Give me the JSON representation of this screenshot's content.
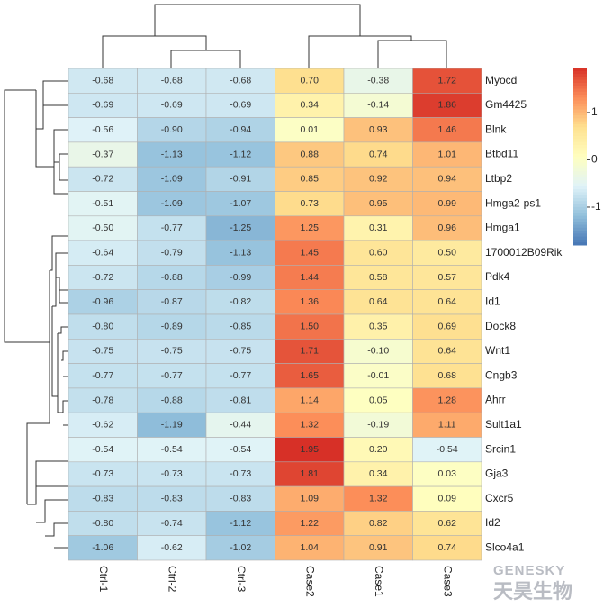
{
  "chart_data": {
    "type": "heatmap",
    "columns": [
      "Ctrl-1",
      "Ctrl-2",
      "Ctrl-3",
      "Case2",
      "Case1",
      "Case3"
    ],
    "rows": [
      "Myocd",
      "Gm4425",
      "Blnk",
      "Btbd11",
      "Ltbp2",
      "Hmga2-ps1",
      "Hmga1",
      "1700012B09Rik",
      "Pdk4",
      "Id1",
      "Dock8",
      "Wnt1",
      "Cngb3",
      "Ahrr",
      "Sult1a1",
      "Srcin1",
      "Gja3",
      "Cxcr5",
      "Id2",
      "Slco4a1"
    ],
    "values": [
      [
        -0.68,
        -0.68,
        -0.68,
        0.7,
        -0.38,
        1.72
      ],
      [
        -0.69,
        -0.69,
        -0.69,
        0.34,
        -0.14,
        1.86
      ],
      [
        -0.56,
        -0.9,
        -0.94,
        0.01,
        0.93,
        1.46
      ],
      [
        -0.37,
        -1.13,
        -1.12,
        0.88,
        0.74,
        1.01
      ],
      [
        -0.72,
        -1.09,
        -0.91,
        0.85,
        0.92,
        0.94
      ],
      [
        -0.51,
        -1.09,
        -1.07,
        0.73,
        0.95,
        0.99
      ],
      [
        -0.5,
        -0.77,
        -1.25,
        1.25,
        0.31,
        0.96
      ],
      [
        -0.64,
        -0.79,
        -1.13,
        1.45,
        0.6,
        0.5
      ],
      [
        -0.72,
        -0.88,
        -0.99,
        1.44,
        0.58,
        0.57
      ],
      [
        -0.96,
        -0.87,
        -0.82,
        1.36,
        0.64,
        0.64
      ],
      [
        -0.8,
        -0.89,
        -0.85,
        1.5,
        0.35,
        0.69
      ],
      [
        -0.75,
        -0.75,
        -0.75,
        1.71,
        -0.1,
        0.64
      ],
      [
        -0.77,
        -0.77,
        -0.77,
        1.65,
        -0.01,
        0.68
      ],
      [
        -0.78,
        -0.88,
        -0.81,
        1.14,
        0.05,
        1.28
      ],
      [
        -0.62,
        -1.19,
        -0.44,
        1.32,
        -0.19,
        1.11
      ],
      [
        -0.54,
        -0.54,
        -0.54,
        1.95,
        0.2,
        -0.54
      ],
      [
        -0.73,
        -0.73,
        -0.73,
        1.81,
        0.34,
        0.03
      ],
      [
        -0.83,
        -0.83,
        -0.83,
        1.09,
        1.32,
        0.09
      ],
      [
        -0.8,
        -0.74,
        -1.12,
        1.22,
        0.82,
        0.62
      ],
      [
        -1.06,
        -0.62,
        -1.02,
        1.04,
        0.91,
        0.74
      ]
    ],
    "value_labels": [
      [
        "-0.68",
        "-0.68",
        "-0.68",
        "0.70",
        "-0.38",
        "1.72"
      ],
      [
        "-0.69",
        "-0.69",
        "-0.69",
        "0.34",
        "-0.14",
        "1.86"
      ],
      [
        "-0.56",
        "-0.90",
        "-0.94",
        "0.01",
        "0.93",
        "1.46"
      ],
      [
        "-0.37",
        "-1.13",
        "-1.12",
        "0.88",
        "0.74",
        "1.01"
      ],
      [
        "-0.72",
        "-1.09",
        "-0.91",
        "0.85",
        "0.92",
        "0.94"
      ],
      [
        "-0.51",
        "-1.09",
        "-1.07",
        "0.73",
        "0.95",
        "0.99"
      ],
      [
        "-0.50",
        "-0.77",
        "-1.25",
        "1.25",
        "0.31",
        "0.96"
      ],
      [
        "-0.64",
        "-0.79",
        "-1.13",
        "1.45",
        "0.60",
        "0.50"
      ],
      [
        "-0.72",
        "-0.88",
        "-0.99",
        "1.44",
        "0.58",
        "0.57"
      ],
      [
        "-0.96",
        "-0.87",
        "-0.82",
        "1.36",
        "0.64",
        "0.64"
      ],
      [
        "-0.80",
        "-0.89",
        "-0.85",
        "1.50",
        "0.35",
        "0.69"
      ],
      [
        "-0.75",
        "-0.75",
        "-0.75",
        "1.71",
        "-0.10",
        "0.64"
      ],
      [
        "-0.77",
        "-0.77",
        "-0.77",
        "1.65",
        "-0.01",
        "0.68"
      ],
      [
        "-0.78",
        "-0.88",
        "-0.81",
        "1.14",
        "0.05",
        "1.28"
      ],
      [
        "-0.62",
        "-1.19",
        "-0.44",
        "1.32",
        "-0.19",
        "1.11"
      ],
      [
        "-0.54",
        "-0.54",
        "-0.54",
        "1.95",
        "0.20",
        "-0.54"
      ],
      [
        "-0.73",
        "-0.73",
        "-0.73",
        "1.81",
        "0.34",
        "0.03"
      ],
      [
        "-0.83",
        "-0.83",
        "-0.83",
        "1.09",
        "1.32",
        "0.09"
      ],
      [
        "-0.80",
        "-0.74",
        "-1.12",
        "1.22",
        "0.82",
        "0.62"
      ],
      [
        "-1.06",
        "-0.62",
        "-1.02",
        "1.04",
        "0.91",
        "0.74"
      ]
    ],
    "colors": [
      "#4575b4",
      "#91bfdb",
      "#e0f3f8",
      "#ffffbf",
      "#fee090",
      "#fc8d59",
      "#d73027"
    ],
    "clim": [
      -1.8,
      1.95
    ],
    "colorbar_ticks": [
      -1,
      0,
      1
    ]
  },
  "watermark": {
    "brand": "GENESKY",
    "name": "天昊生物"
  }
}
